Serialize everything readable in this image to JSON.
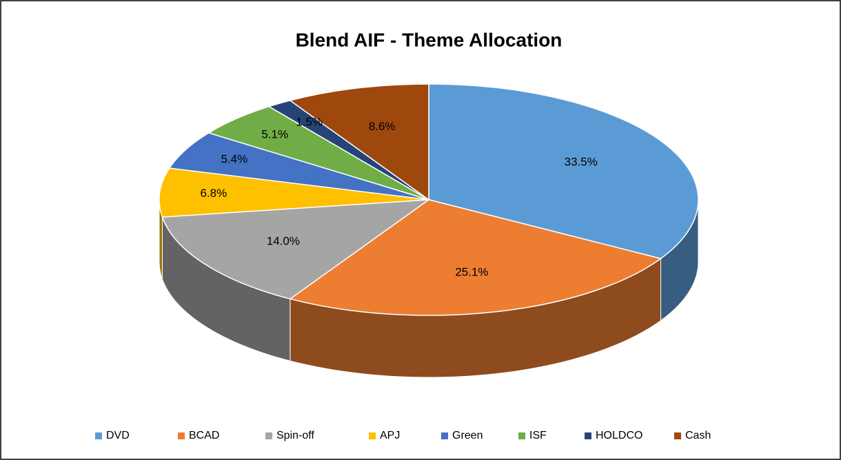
{
  "chart_data": {
    "type": "pie",
    "title": "Blend AIF - Theme Allocation",
    "categories": [
      "DVD",
      "BCAD",
      "Spin-off",
      "APJ",
      "Green",
      "ISF",
      "HOLDCO",
      "Cash"
    ],
    "values": [
      33.5,
      25.1,
      14.0,
      6.8,
      5.4,
      5.1,
      1.5,
      8.6
    ],
    "value_labels": [
      "33.5%",
      "25.1%",
      "14.0%",
      "6.8%",
      "5.4%",
      "5.1%",
      "1.5%",
      "8.6%"
    ],
    "colors": [
      "#5b9bd5",
      "#ed7d31",
      "#a5a5a5",
      "#ffc000",
      "#4472c4",
      "#70ad47",
      "#264478",
      "#9e480e"
    ],
    "legend": "bottom"
  }
}
